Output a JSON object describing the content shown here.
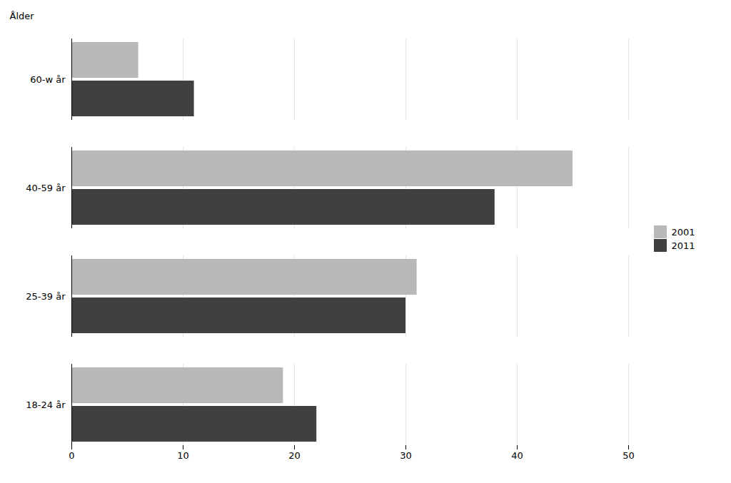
{
  "chart_data": {
    "type": "bar",
    "orientation": "horizontal",
    "ylabel": "Ålder",
    "categories": [
      "18-24 år",
      "25-39 år",
      "40-59 år",
      "60-w år"
    ],
    "series": [
      {
        "name": "2001",
        "color": "#b8b8b8",
        "values": [
          19,
          31,
          45,
          6
        ]
      },
      {
        "name": "2011",
        "color": "#404040",
        "values": [
          22,
          30,
          38,
          11
        ]
      }
    ],
    "xlim": [
      0,
      50
    ],
    "xticks": [
      0,
      10,
      20,
      30,
      40,
      50
    ],
    "grid": true,
    "legend": "right"
  }
}
